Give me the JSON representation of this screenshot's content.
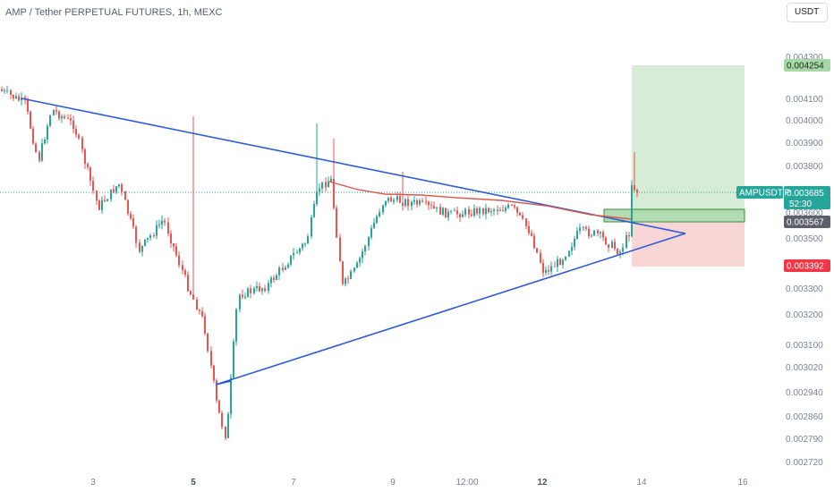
{
  "header": {
    "title": "AMP / Tether PERPETUAL FUTURES, 1h, MEXC",
    "currency_button": "USDT"
  },
  "chart_data": {
    "type": "candlestick",
    "title": "AMP / Tether PERPETUAL FUTURES, 1h, MEXC",
    "ylim": [
      0.00268,
      0.00432
    ],
    "x_tick_labels": [
      {
        "label": "3",
        "bold": false
      },
      {
        "label": "5",
        "bold": true
      },
      {
        "label": "7",
        "bold": false
      },
      {
        "label": "9",
        "bold": false
      },
      {
        "label": "12:00",
        "bold": false
      },
      {
        "label": "12",
        "bold": true
      },
      {
        "label": "14",
        "bold": false
      },
      {
        "label": "16",
        "bold": false
      }
    ],
    "y_tick_labels": [
      "0.004300",
      "0.004100",
      "0.004000",
      "0.003900",
      "0.003800",
      "0.003700",
      "0.003600",
      "0.003500",
      "0.003400",
      "0.003300",
      "0.003200",
      "0.003100",
      "0.003020",
      "0.002940",
      "0.002860",
      "0.002790",
      "0.002720"
    ],
    "price_tags": {
      "target": "0.004254",
      "symbol": "AMPUSDT.P",
      "current": "0.003685",
      "countdown": "52:30",
      "entry": "0.003567",
      "stop": "0.003392",
      "hidden_tick": "0.003600"
    },
    "price_levels": {
      "target": 0.004254,
      "current": 0.003685,
      "entry": 0.003567,
      "stop": 0.003392,
      "entry_zone": [
        0.003567,
        0.00362
      ]
    },
    "trendlines": {
      "upper": [
        [
          0.0041,
          0.003735
        ],
        [
          0.00356,
          0.00353
        ]
      ],
      "lower": [
        [
          0.002955,
          0.003415
        ],
        [
          0.00353
        ]
      ],
      "moving_average": [
        0.003755,
        0.00373,
        0.003695,
        0.00368,
        0.003675,
        0.003665,
        0.00366,
        0.003648,
        0.00362,
        0.0036
      ]
    },
    "price_path": [
      0.00412,
      0.0041,
      0.00404,
      0.00398,
      0.00402,
      0.00396,
      0.00389,
      0.00384,
      0.00372,
      0.00365,
      0.00368,
      0.00372,
      0.00368,
      0.00358,
      0.00348,
      0.00352,
      0.00356,
      0.00354,
      0.0035,
      0.0034,
      0.0033,
      0.0032,
      0.00306,
      0.00294,
      0.00286,
      0.00296,
      0.00312,
      0.00328,
      0.00336,
      0.00346,
      0.00348,
      0.00352,
      0.00362,
      0.0037,
      0.00364,
      0.00344,
      0.00334,
      0.00338,
      0.0035,
      0.00362,
      0.00368,
      0.00372,
      0.0037,
      0.00368,
      0.00366,
      0.00367,
      0.00366,
      0.00368,
      0.00364,
      0.00366,
      0.00367,
      0.00365,
      0.00362,
      0.00352,
      0.00344,
      0.00344,
      0.0035,
      0.00355,
      0.00352,
      0.00354,
      0.0035,
      0.00358,
      0.00368,
      0.00372
    ],
    "colors": {
      "up": "#26a69a",
      "down": "#ef5350",
      "trendline": "#2f5bd6",
      "moving_average": "#d65c50",
      "target_zone": "#d6ecd6",
      "stop_zone": "#f9d6d6",
      "current_tag": "#26a69a",
      "target_tag": "#a6d8a6",
      "entry_tag": "#5d6068",
      "stop_tag": "#f23645"
    },
    "grid": false,
    "legend": "none"
  }
}
